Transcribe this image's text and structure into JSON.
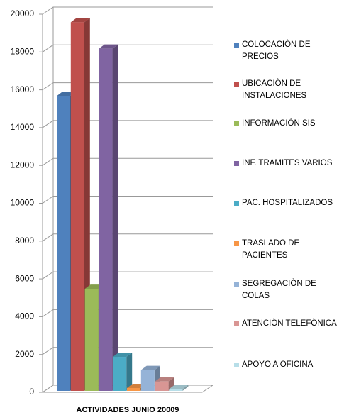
{
  "chart_data": {
    "type": "bar3d",
    "categories": [
      "ACTIVIDADES JUNIO 20009"
    ],
    "series": [
      {
        "name": "COLOCACIÒN DE PRECIOS",
        "color": "#4F81BD",
        "values": [
          15600
        ]
      },
      {
        "name": "UBICACIÒN DE INSTALACIONES",
        "color": "#C0504D",
        "values": [
          19500
        ]
      },
      {
        "name": "INFORMACIÒN SIS",
        "color": "#9BBB59",
        "values": [
          5400
        ]
      },
      {
        "name": "INF. TRAMITES VARIOS",
        "color": "#8064A2",
        "values": [
          18100
        ]
      },
      {
        "name": "PAC. HOSPITALIZADOS",
        "color": "#4BACC6",
        "values": [
          1800
        ]
      },
      {
        "name": "TRASLADO DE PACIENTES",
        "color": "#F79646",
        "values": [
          150
        ]
      },
      {
        "name": "SEGREGACIÒN DE COLAS",
        "color": "#95B3D7",
        "values": [
          1100
        ]
      },
      {
        "name": "ATENCIÒN TELEFÒNICA",
        "color": "#D99694",
        "values": [
          500
        ]
      },
      {
        "name": "APOYO A OFICINA",
        "color": "#B7DEE8",
        "values": [
          100
        ]
      }
    ],
    "ylim": [
      0,
      20000
    ],
    "yticks": [
      0,
      2000,
      4000,
      6000,
      8000,
      10000,
      12000,
      14000,
      16000,
      18000,
      20000
    ],
    "grid": true
  }
}
